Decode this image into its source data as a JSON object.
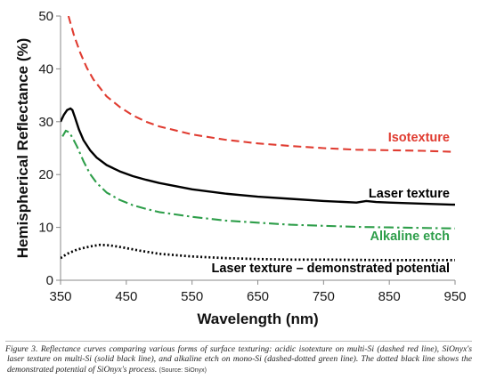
{
  "chart_data": {
    "type": "line",
    "xlabel": "Wavelength (nm)",
    "ylabel": "Hemispherical Reflectance (%)",
    "xlim": [
      350,
      950
    ],
    "ylim": [
      0,
      50
    ],
    "xticks": [
      350,
      450,
      550,
      650,
      750,
      850,
      950
    ],
    "yticks": [
      0,
      10,
      20,
      30,
      40,
      50
    ],
    "grid": false,
    "legend": "none",
    "series": [
      {
        "name": "Isotexture",
        "color": "#e03c31",
        "style": "dashed",
        "points": [
          [
            362,
            50
          ],
          [
            370,
            46.5
          ],
          [
            380,
            43
          ],
          [
            390,
            40.2
          ],
          [
            400,
            38
          ],
          [
            420,
            34.8
          ],
          [
            440,
            32.8
          ],
          [
            460,
            31.2
          ],
          [
            480,
            30
          ],
          [
            500,
            29.1
          ],
          [
            550,
            27.6
          ],
          [
            600,
            26.6
          ],
          [
            650,
            25.9
          ],
          [
            700,
            25.4
          ],
          [
            750,
            25
          ],
          [
            800,
            24.7
          ],
          [
            850,
            24.6
          ],
          [
            900,
            24.5
          ],
          [
            950,
            24.3
          ]
        ]
      },
      {
        "name": "Laser texture",
        "color": "#000000",
        "style": "solid",
        "points": [
          [
            350,
            30
          ],
          [
            355,
            31.3
          ],
          [
            360,
            32.2
          ],
          [
            365,
            32.5
          ],
          [
            368,
            32.2
          ],
          [
            372,
            30.8
          ],
          [
            378,
            28.5
          ],
          [
            385,
            26.5
          ],
          [
            395,
            24.6
          ],
          [
            405,
            23.2
          ],
          [
            420,
            21.8
          ],
          [
            440,
            20.6
          ],
          [
            460,
            19.7
          ],
          [
            480,
            19
          ],
          [
            500,
            18.4
          ],
          [
            550,
            17.2
          ],
          [
            600,
            16.4
          ],
          [
            650,
            15.8
          ],
          [
            700,
            15.4
          ],
          [
            750,
            15
          ],
          [
            800,
            14.7
          ],
          [
            815,
            15
          ],
          [
            830,
            14.8
          ],
          [
            850,
            14.7
          ],
          [
            900,
            14.5
          ],
          [
            950,
            14.3
          ]
        ]
      },
      {
        "name": "Alkaline etch",
        "color": "#2e9e4a",
        "style": "dashdot",
        "points": [
          [
            353,
            27.2
          ],
          [
            358,
            28.3
          ],
          [
            363,
            28
          ],
          [
            368,
            27
          ],
          [
            375,
            25.3
          ],
          [
            385,
            22.5
          ],
          [
            395,
            20.1
          ],
          [
            405,
            18.4
          ],
          [
            420,
            16.6
          ],
          [
            440,
            15.2
          ],
          [
            460,
            14.2
          ],
          [
            480,
            13.5
          ],
          [
            500,
            12.9
          ],
          [
            550,
            12
          ],
          [
            600,
            11.3
          ],
          [
            650,
            10.9
          ],
          [
            700,
            10.5
          ],
          [
            750,
            10.3
          ],
          [
            800,
            10.1
          ],
          [
            850,
            10
          ],
          [
            900,
            9.9
          ],
          [
            950,
            9.8
          ]
        ]
      },
      {
        "name": "Laser texture – demonstrated potential",
        "color": "#000000",
        "style": "dotted",
        "points": [
          [
            350,
            4.2
          ],
          [
            360,
            5
          ],
          [
            375,
            5.8
          ],
          [
            395,
            6.4
          ],
          [
            410,
            6.7
          ],
          [
            425,
            6.6
          ],
          [
            445,
            6.2
          ],
          [
            470,
            5.6
          ],
          [
            500,
            5
          ],
          [
            550,
            4.5
          ],
          [
            600,
            4.2
          ],
          [
            650,
            4
          ],
          [
            700,
            3.9
          ],
          [
            750,
            3.9
          ],
          [
            800,
            3.85
          ],
          [
            850,
            3.8
          ],
          [
            900,
            3.8
          ],
          [
            950,
            3.8
          ]
        ]
      }
    ]
  },
  "caption": {
    "text": "Figure 3. Reflectance curves comparing various forms of surface texturing: acidic isotexture on multi-Si (dashed red line), SiOnyx's laser texture on multi-Si (solid black line), and alkaline etch on mono-Si (dashed-dotted green line). The dotted black line shows the demonstrated potential of SiOnyx's process.",
    "source": "(Source: SiOnyx)"
  }
}
